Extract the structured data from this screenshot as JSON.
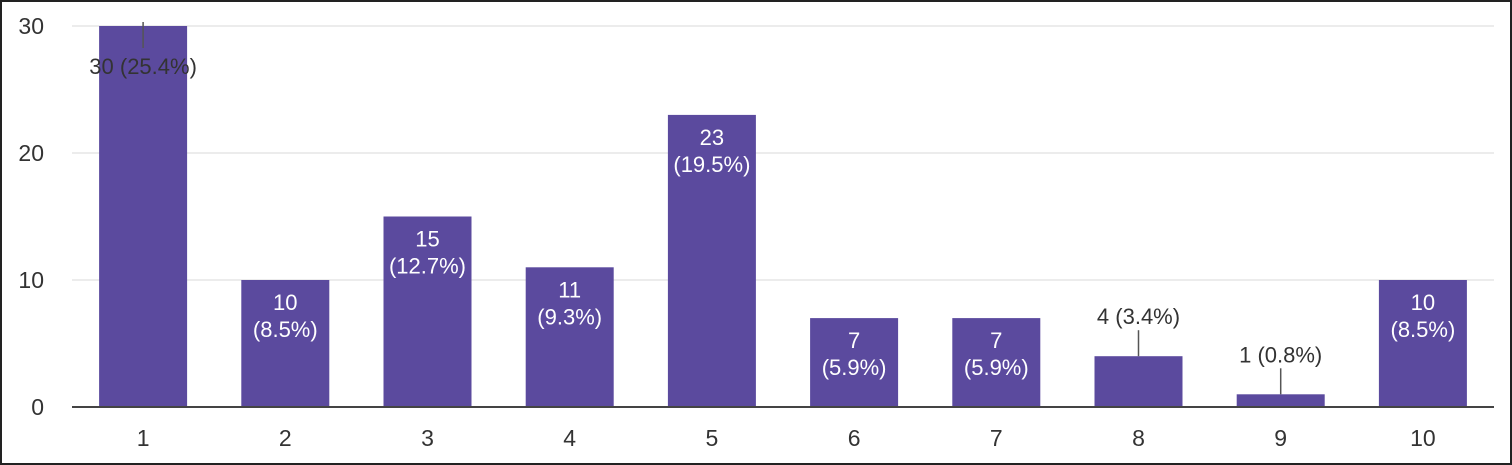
{
  "chart_data": {
    "type": "bar",
    "title": "",
    "xlabel": "",
    "ylabel": "",
    "ylim": [
      0,
      30
    ],
    "yticks": [
      "0",
      "10",
      "20",
      "30"
    ],
    "grid": true,
    "legend": "none",
    "bar_color": "#5b4a9e",
    "categories": [
      "1",
      "2",
      "3",
      "4",
      "5",
      "6",
      "7",
      "8",
      "9",
      "10"
    ],
    "values": [
      30,
      10,
      15,
      11,
      23,
      7,
      7,
      4,
      1,
      10
    ],
    "labels": [
      "30 (25.4%)",
      "10 (8.5%)",
      "15 (12.7%)",
      "11 (9.3%)",
      "23 (19.5%)",
      "7 (5.9%)",
      "7 (5.9%)",
      "4 (3.4%)",
      "1 (0.8%)",
      "10 (8.5%)"
    ]
  }
}
